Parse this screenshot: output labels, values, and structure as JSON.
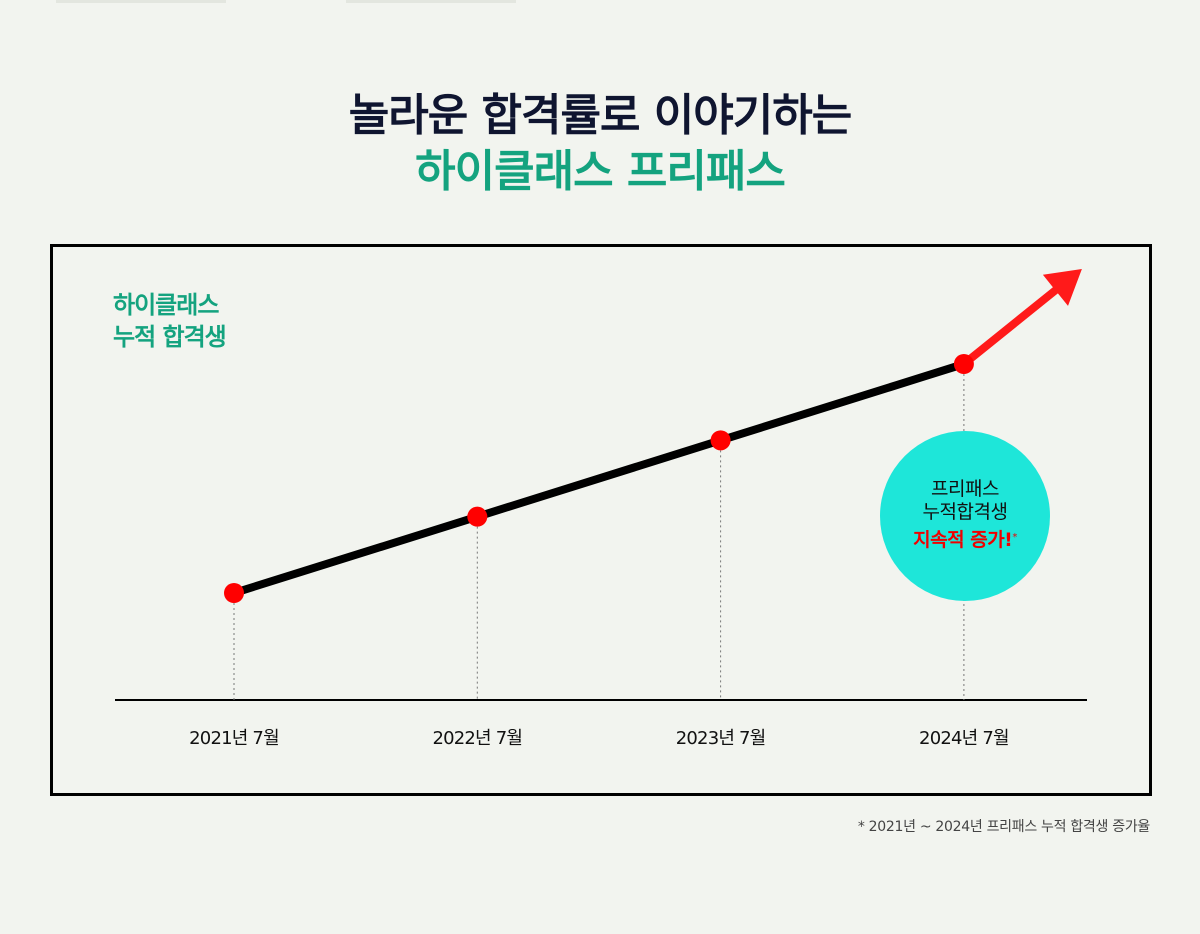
{
  "headline": {
    "line1": "놀라운 합격률로 이야기하는",
    "line2": "하이클래스 프리패스"
  },
  "chart_data": {
    "type": "line",
    "title": "",
    "ylabel_lines": [
      "하이클래스",
      "누적 합격생"
    ],
    "categories": [
      "2021년 7월",
      "2022년 7월",
      "2023년 7월",
      "2024년 7월"
    ],
    "values": [
      1,
      2,
      3,
      4
    ],
    "trend": "increasing",
    "grid": false,
    "colors": {
      "line": "#000000",
      "marker": "#ff0000",
      "arrow": "#ff1a1a",
      "badge": "#1ee6d9"
    }
  },
  "badge": {
    "line1": "프리패스",
    "line2": "누적합격생",
    "line3": "지속적 증가!",
    "mark": "*"
  },
  "footnote": "*  2021년 ~ 2024년 프리패스 누적 합격생 증가율"
}
